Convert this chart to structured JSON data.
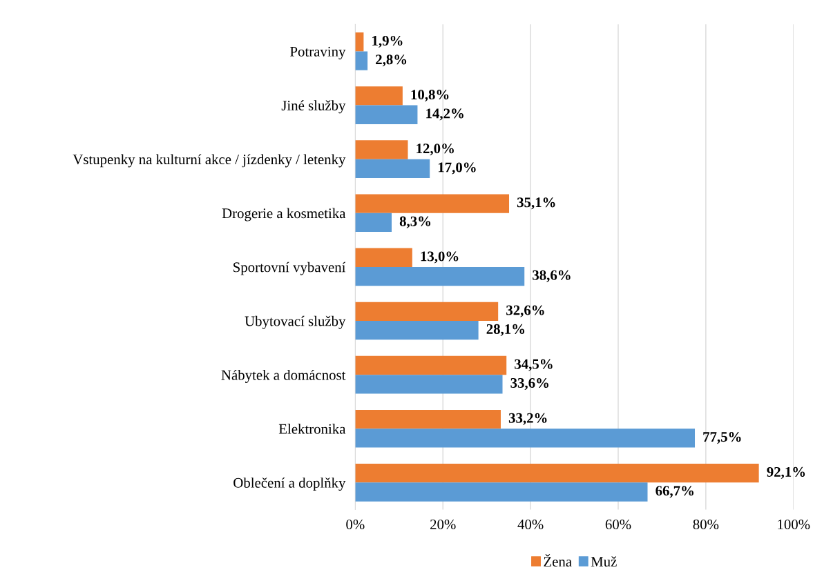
{
  "chart_data": {
    "type": "bar",
    "orientation": "horizontal",
    "categories": [
      "Potraviny",
      "Jiné služby",
      "Vstupenky na kulturní akce / jízdenky / letenky",
      "Drogerie a kosmetika",
      "Sportovní vybavení",
      "Ubytovací služby",
      "Nábytek a domácnost",
      "Elektronika",
      "Oblečení a doplňky"
    ],
    "series": [
      {
        "name": "Žena",
        "color": "#ed7d31",
        "values": [
          1.9,
          10.8,
          12.0,
          35.1,
          13.0,
          32.6,
          34.5,
          33.2,
          92.1
        ],
        "value_labels": [
          "1,9%",
          "10,8%",
          "12,0%",
          "35,1%",
          "13,0%",
          "32,6%",
          "34,5%",
          "33,2%",
          "92,1%"
        ]
      },
      {
        "name": "Muž",
        "color": "#5b9bd5",
        "values": [
          2.8,
          14.2,
          17.0,
          8.3,
          38.6,
          28.1,
          33.6,
          77.5,
          66.7
        ],
        "value_labels": [
          "2,8%",
          "14,2%",
          "17,0%",
          "8,3%",
          "38,6%",
          "28,1%",
          "33,6%",
          "77,5%",
          "66,7%"
        ]
      }
    ],
    "xlim": [
      0,
      100
    ],
    "xticks": [
      {
        "value": 0,
        "label": "0%"
      },
      {
        "value": 20,
        "label": "20%"
      },
      {
        "value": 40,
        "label": "40%"
      },
      {
        "value": 60,
        "label": "60%"
      },
      {
        "value": 80,
        "label": "80%"
      },
      {
        "value": 100,
        "label": "100%"
      }
    ],
    "grid": "x",
    "legend": "bottom"
  }
}
